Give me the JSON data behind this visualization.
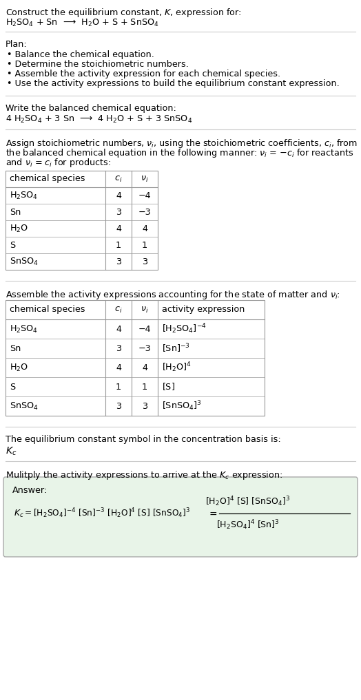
{
  "title_line1": "Construct the equilibrium constant, $K$, expression for:",
  "title_line2_parts": [
    "$\\mathdefault{H_2SO_4}$ + Sn  ⟶  $\\mathdefault{H_2O}$ + S + $\\mathdefault{SnSO_4}$"
  ],
  "plan_header": "Plan:",
  "plan_items": [
    "• Balance the chemical equation.",
    "• Determine the stoichiometric numbers.",
    "• Assemble the activity expression for each chemical species.",
    "• Use the activity expressions to build the equilibrium constant expression."
  ],
  "balanced_header": "Write the balanced chemical equation:",
  "balanced_eq": "4 $\\mathdefault{H_2SO_4}$ + 3 Sn  ⟶  4 $\\mathdefault{H_2O}$ + S + 3 $\\mathdefault{SnSO_4}$",
  "stoich_header_lines": [
    "Assign stoichiometric numbers, $\\it{\\nu_i}$, using the stoichiometric coefficients, $\\it{c_i}$, from",
    "the balanced chemical equation in the following manner: $\\it{\\nu_i}$ = −$\\it{c_i}$ for reactants",
    "and $\\it{\\nu_i}$ = $\\it{c_i}$ for products:"
  ],
  "table1_cols": [
    "chemical species",
    "$\\it{c_i}$",
    "$\\it{\\nu_i}$"
  ],
  "table1_rows": [
    [
      "$\\mathdefault{H_2SO_4}$",
      "4",
      "−4"
    ],
    [
      "Sn",
      "3",
      "−3"
    ],
    [
      "$\\mathdefault{H_2O}$",
      "4",
      "4"
    ],
    [
      "S",
      "1",
      "1"
    ],
    [
      "$\\mathdefault{SnSO_4}$",
      "3",
      "3"
    ]
  ],
  "activity_header": "Assemble the activity expressions accounting for the state of matter and $\\it{\\nu_i}$:",
  "table2_cols": [
    "chemical species",
    "$\\it{c_i}$",
    "$\\it{\\nu_i}$",
    "activity expression"
  ],
  "table2_rows": [
    [
      "$\\mathdefault{H_2SO_4}$",
      "4",
      "−4",
      "$[\\mathdefault{H_2SO_4}]^{-4}$"
    ],
    [
      "Sn",
      "3",
      "−3",
      "$[\\mathrm{Sn}]^{-3}$"
    ],
    [
      "$\\mathdefault{H_2O}$",
      "4",
      "4",
      "$[\\mathdefault{H_2O}]^{4}$"
    ],
    [
      "S",
      "1",
      "1",
      "$[\\mathrm{S}]$"
    ],
    [
      "$\\mathdefault{SnSO_4}$",
      "3",
      "3",
      "$[\\mathdefault{SnSO_4}]^{3}$"
    ]
  ],
  "kc_header": "The equilibrium constant symbol in the concentration basis is:",
  "kc_symbol": "$K_c$",
  "multiply_header": "Mulitply the activity expressions to arrive at the $K_c$ expression:",
  "answer_label": "Answer:",
  "bg_color": "#ffffff",
  "text_color": "#000000",
  "table_border_color": "#999999",
  "answer_bg_color": "#e8f4e8",
  "answer_border_color": "#aaaaaa",
  "sep_line_color": "#cccccc"
}
